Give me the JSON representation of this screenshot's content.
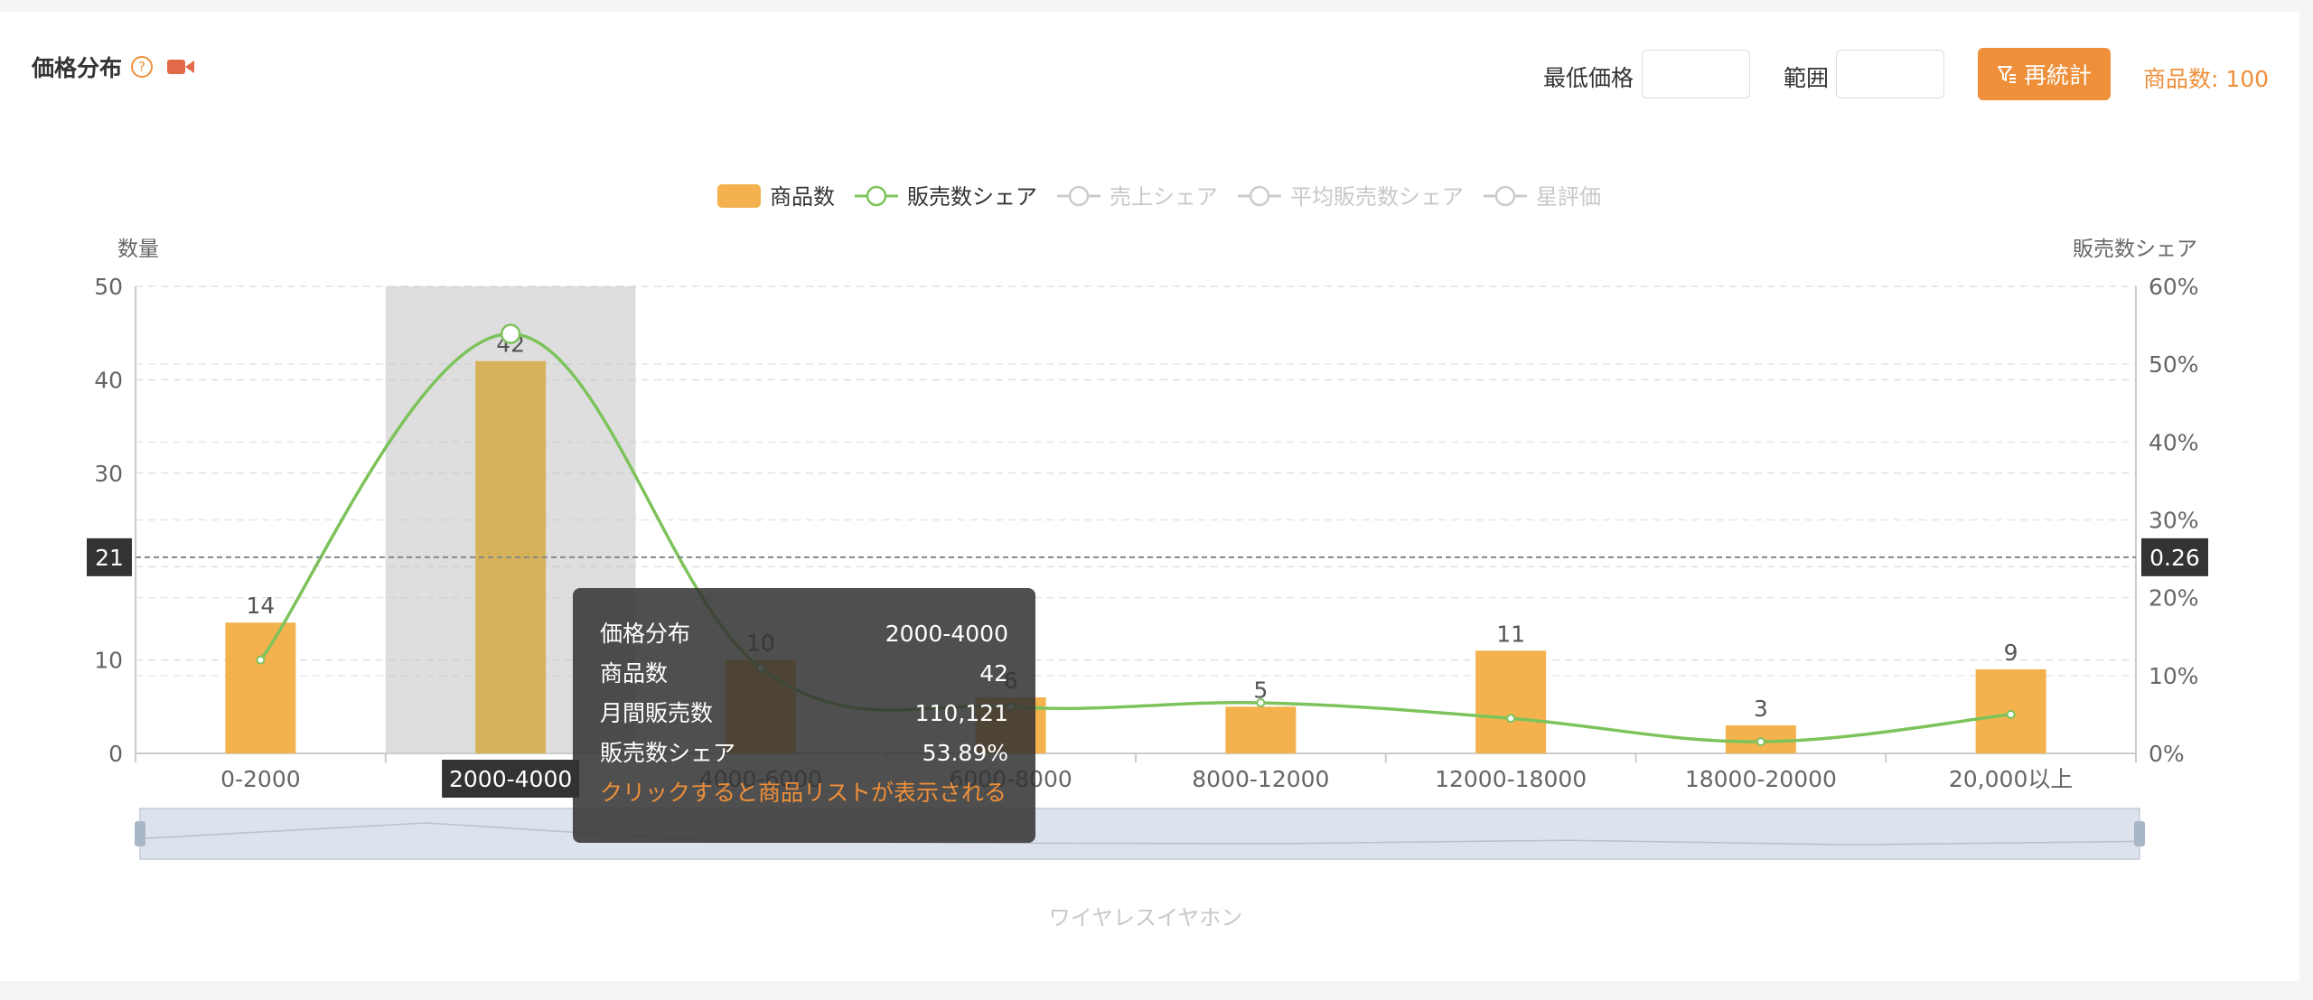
{
  "header": {
    "title": "価格分布",
    "help_glyph": "?",
    "help_icon": "help-circle-icon",
    "video_icon": "video-camera-icon"
  },
  "controls": {
    "min_price_label": "最低価格",
    "min_price_value": "",
    "range_label": "範囲",
    "range_value": "",
    "recalc_label": "再統計",
    "recalc_icon": "filter-icon",
    "product_count_text": "商品数: 100"
  },
  "colors": {
    "accent": "#ee8f3a",
    "bar": "#f3b24d",
    "bar_highlight": "#d6b35a",
    "line": "#7dc35b",
    "legend_inactive": "#cccccc"
  },
  "legend": [
    {
      "label": "商品数",
      "type": "bar",
      "active": true
    },
    {
      "label": "販売数シェア",
      "type": "line",
      "active": true
    },
    {
      "label": "売上シェア",
      "type": "line",
      "active": false
    },
    {
      "label": "平均販売数シェア",
      "type": "line",
      "active": false
    },
    {
      "label": "星評価",
      "type": "line",
      "active": false
    }
  ],
  "chart_data": {
    "type": "bar",
    "categories": [
      "0-2000",
      "2000-4000",
      "4000-6000",
      "6000-8000",
      "8000-12000",
      "12000-18000",
      "18000-20000",
      "20,000以上"
    ],
    "series": [
      {
        "name": "商品数",
        "type": "bar",
        "axis": "left",
        "values": [
          14,
          42,
          10,
          6,
          5,
          11,
          3,
          9
        ]
      },
      {
        "name": "販売数シェア",
        "type": "line",
        "axis": "right",
        "values": [
          0.12,
          0.5389,
          0.11,
          0.06,
          0.065,
          0.045,
          0.015,
          0.05
        ]
      }
    ],
    "left_axis": {
      "label": "数量",
      "range": [
        0,
        50
      ],
      "ticks": [
        "0",
        "10",
        "20",
        "30",
        "40",
        "50"
      ]
    },
    "right_axis": {
      "label": "販売数シェア",
      "range": [
        0,
        0.6
      ],
      "ticks": [
        "0%",
        "10%",
        "20%",
        "30%",
        "40%",
        "50%",
        "60%"
      ]
    },
    "crosshair": {
      "left_value": "21",
      "right_value": "0.26",
      "highlight_category": "2000-4000"
    },
    "grid": true,
    "xlabel": "ワイヤレスイヤホン",
    "legend_position": "top-center"
  },
  "tooltip": {
    "rows": [
      {
        "label": "価格分布",
        "value": "2000-4000"
      },
      {
        "label": "商品数",
        "value": "42"
      },
      {
        "label": "月間販売数",
        "value": "110,121"
      },
      {
        "label": "販売数シェア",
        "value": "53.89%"
      }
    ],
    "link_text": "クリックすると商品リストが表示される"
  }
}
